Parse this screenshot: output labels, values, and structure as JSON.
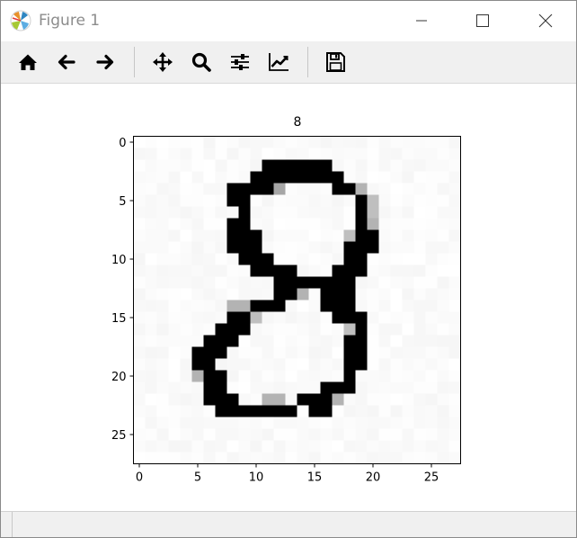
{
  "window": {
    "title": "Figure 1",
    "icon": "matplotlib-logo-icon",
    "controls": [
      "minimize-icon",
      "maximize-icon",
      "close-icon"
    ]
  },
  "toolbar": {
    "items": [
      {
        "name": "home-button",
        "icon": "home-icon"
      },
      {
        "name": "back-button",
        "icon": "arrow-left-icon"
      },
      {
        "name": "forward-button",
        "icon": "arrow-right-icon"
      },
      {
        "name": "pan-button",
        "icon": "move-arrows-icon"
      },
      {
        "name": "zoom-button",
        "icon": "magnifier-icon"
      },
      {
        "name": "configure-subplots-button",
        "icon": "sliders-icon"
      },
      {
        "name": "edit-axis-button",
        "icon": "line-chart-icon"
      },
      {
        "name": "save-button",
        "icon": "floppy-disk-icon"
      }
    ]
  },
  "plot": {
    "title": "8",
    "xticks": [
      "0",
      "5",
      "10",
      "15",
      "20",
      "25"
    ],
    "yticks": [
      "0",
      "5",
      "10",
      "15",
      "20",
      "25"
    ],
    "cmap": "gray_r",
    "grid_size": 28,
    "ink_rows": [
      "............................",
      "............................",
      "...........######...........",
      "..........########..........",
      "........####.....###........",
      "........##.........##.......",
      ".........#.........##.......",
      "........##.........##.......",
      "........###........##.......",
      "........###.......###.......",
      ".........###......##........",
      "..........####...###........",
      "............#######.........",
      "............###.###.........",
      "..........###...###.........",
      "........###......###........",
      ".......###........##........",
      "......###.........##........",
      ".....###..........##........",
      ".....##...........##........",
      ".....###..........#.........",
      "......##........###.........",
      "......###.....####..........",
      ".......#######.##...........",
      "............................",
      "............................",
      "............................",
      "............................"
    ],
    "gray_cells": [
      [
        4,
        12,
        0.35
      ],
      [
        4,
        19,
        0.3
      ],
      [
        5,
        20,
        0.25
      ],
      [
        6,
        20,
        0.25
      ],
      [
        7,
        20,
        0.3
      ],
      [
        8,
        18,
        0.25
      ],
      [
        13,
        14,
        0.3
      ],
      [
        14,
        8,
        0.3
      ],
      [
        14,
        9,
        0.3
      ],
      [
        15,
        10,
        0.25
      ],
      [
        16,
        18,
        0.25
      ],
      [
        20,
        5,
        0.3
      ],
      [
        22,
        11,
        0.3
      ],
      [
        22,
        12,
        0.3
      ],
      [
        22,
        17,
        0.3
      ]
    ]
  }
}
